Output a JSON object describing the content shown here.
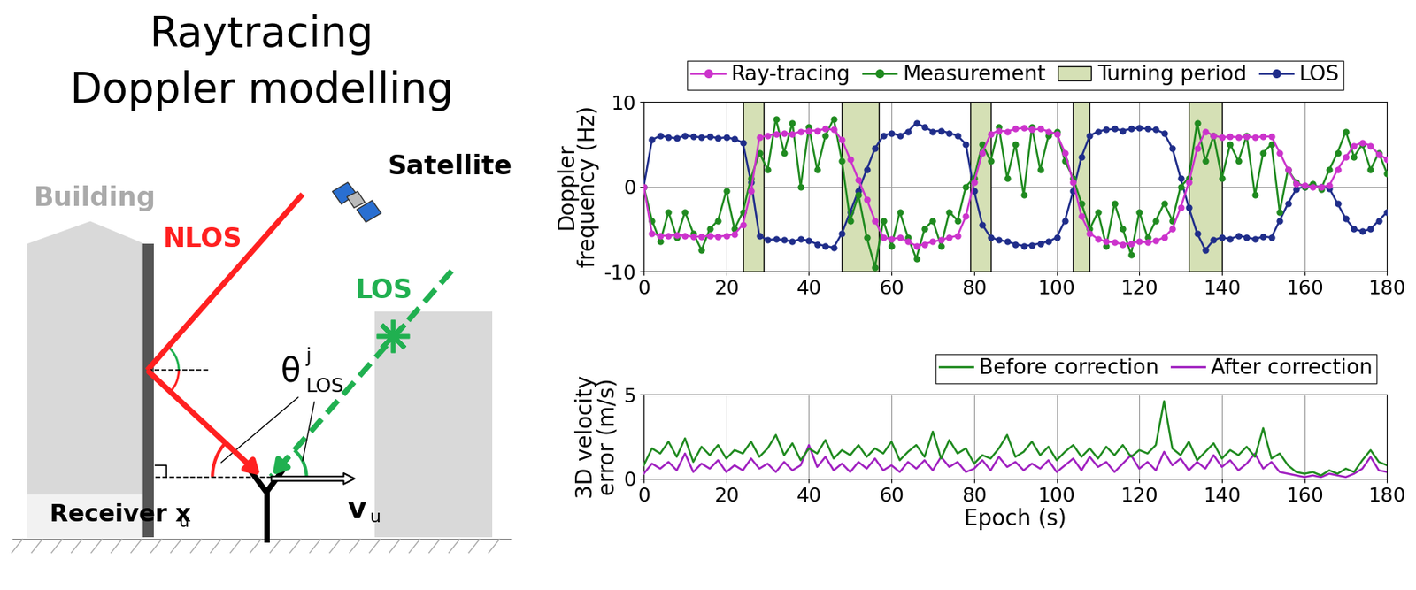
{
  "diagram": {
    "title": [
      "Raytracing",
      "Doppler modelling"
    ],
    "building": "Building",
    "satellite": "Satellite",
    "nlos": "NLOS",
    "los": "LOS",
    "angle": {
      "symbol": "θ",
      "sup": "j",
      "sub": "LOS"
    },
    "receiver": {
      "text": "Receiver x",
      "sub": "u"
    },
    "velocity": {
      "text": "v",
      "sub": "u"
    }
  },
  "chart_data": [
    {
      "type": "line",
      "y_label": "Doppler\nfrequency (Hz)",
      "x": [
        0,
        2,
        4,
        6,
        8,
        10,
        12,
        14,
        16,
        18,
        20,
        22,
        24,
        26,
        28,
        30,
        32,
        34,
        36,
        38,
        40,
        42,
        44,
        46,
        48,
        50,
        52,
        54,
        56,
        58,
        60,
        62,
        64,
        66,
        68,
        70,
        72,
        74,
        76,
        78,
        80,
        82,
        84,
        86,
        88,
        90,
        92,
        94,
        96,
        98,
        100,
        102,
        104,
        106,
        108,
        110,
        112,
        114,
        116,
        118,
        120,
        122,
        124,
        126,
        128,
        130,
        132,
        134,
        136,
        138,
        140,
        142,
        144,
        146,
        148,
        150,
        152,
        154,
        156,
        158,
        160,
        162,
        164,
        166,
        168,
        170,
        172,
        174,
        176,
        178,
        180
      ],
      "xlim": [
        0,
        180
      ],
      "xticks": [
        0,
        20,
        40,
        60,
        80,
        100,
        120,
        140,
        160,
        180
      ],
      "ylim": [
        -10,
        10
      ],
      "yticks": [
        -10,
        0,
        10
      ],
      "grid": true,
      "legend": "lower center",
      "series": [
        {
          "name": "Ray-tracing",
          "color": "#cc33cc",
          "marker": "o",
          "line_style": "solid",
          "values": [
            0,
            -5.5,
            -5.8,
            -5.8,
            -5.7,
            -5.8,
            -5.9,
            -5.9,
            -5.8,
            -5.9,
            -5.8,
            -5.6,
            -4.5,
            -0.5,
            5.8,
            6.0,
            6.2,
            6.3,
            6.2,
            6.5,
            6.6,
            6.6,
            6.8,
            6.7,
            5.5,
            3.2,
            0.8,
            -1.5,
            -4,
            -6,
            -6.2,
            -6.0,
            -6.5,
            -7,
            -6.8,
            -6.5,
            -6.3,
            -6.0,
            -5.8,
            -3.5,
            0.5,
            4,
            6.2,
            6.6,
            6.5,
            6.8,
            6.9,
            6.7,
            6.8,
            6.5,
            6.2,
            4.0,
            0.5,
            -3.5,
            -5.5,
            -6.2,
            -6.5,
            -6.6,
            -6.8,
            -6.7,
            -6.5,
            -6.6,
            -6.4,
            -6.0,
            -5.0,
            -2.5,
            0.5,
            4.5,
            6.5,
            6.0,
            5.8,
            5.9,
            5.8,
            5.9,
            5.8,
            5.9,
            5.9,
            4.0,
            2.0,
            0.3,
            0.1,
            0.0,
            0.0,
            0.1,
            2.0,
            3.5,
            4.8,
            5.2,
            4.8,
            3.8,
            3.2
          ]
        },
        {
          "name": "Measurement",
          "color": "#1f8a1f",
          "marker": "o",
          "line_style": "solid",
          "values": [
            0,
            -4,
            -6.5,
            -3,
            -6,
            -3,
            -5.5,
            -7.5,
            -5,
            -4,
            -0.5,
            -5,
            -3,
            1,
            4,
            2,
            8,
            4,
            7.5,
            0,
            7,
            2,
            6,
            8,
            3,
            -4,
            -1,
            -6,
            -9.5,
            -4,
            -7,
            -3,
            -6,
            -8.5,
            -5,
            -4,
            -7,
            -3,
            -4,
            0,
            1,
            5,
            3,
            7,
            1,
            5,
            -1,
            7,
            2,
            6,
            6.5,
            3,
            1,
            -2,
            -5,
            -3,
            -7,
            -2,
            -5,
            -8,
            -3,
            -6,
            -4,
            -2,
            -4,
            0,
            1,
            7.5,
            3,
            6,
            1,
            5,
            3,
            6,
            -1,
            4,
            5,
            -3,
            2,
            0.5,
            0,
            0.3,
            -0.3,
            2,
            4,
            6.5,
            3.5,
            5,
            2,
            4,
            1.5
          ]
        },
        {
          "name": "Turning period",
          "type": "span",
          "color": "#d5e0b5",
          "spans": [
            [
              24,
              29
            ],
            [
              48,
              57
            ],
            [
              79,
              84
            ],
            [
              104,
              108
            ],
            [
              132,
              140
            ]
          ]
        },
        {
          "name": "LOS",
          "color": "#1f2d8a",
          "marker": "o",
          "line_style": "solid",
          "values": [
            0,
            5.5,
            6.0,
            5.8,
            5.7,
            6.0,
            5.9,
            5.8,
            5.9,
            5.7,
            5.8,
            5.6,
            5.2,
            0.5,
            -5.8,
            -6.3,
            -6.2,
            -6.3,
            -6.5,
            -6.2,
            -6.4,
            -6.8,
            -7.0,
            -7.2,
            -5.5,
            -3.0,
            -0.5,
            2,
            4.5,
            6.0,
            6.3,
            6.0,
            6.5,
            7.5,
            7.0,
            6.5,
            6.6,
            6.3,
            6.0,
            5.0,
            -0.5,
            -4.5,
            -6.0,
            -6.3,
            -6.5,
            -6.8,
            -7.0,
            -6.9,
            -6.7,
            -6.5,
            -6.0,
            -4.0,
            -0.5,
            3.5,
            6.0,
            6.5,
            6.7,
            6.8,
            6.6,
            6.8,
            6.9,
            6.8,
            6.7,
            6.3,
            4.5,
            1.0,
            -2.5,
            -5.5,
            -7.5,
            -6.3,
            -6.0,
            -6.2,
            -5.8,
            -6.0,
            -6.2,
            -5.9,
            -6.0,
            -4.0,
            -2.0,
            -0.3,
            0.0,
            0.1,
            0.0,
            -0.2,
            -2.0,
            -3.8,
            -5.0,
            -5.3,
            -5.0,
            -4.0,
            -3.0
          ]
        }
      ]
    },
    {
      "type": "line",
      "x_label": "Epoch (s)",
      "y_label": "3D velocity\nerror (m/s)",
      "x": [
        0,
        2,
        4,
        6,
        8,
        10,
        12,
        14,
        16,
        18,
        20,
        22,
        24,
        26,
        28,
        30,
        32,
        34,
        36,
        38,
        40,
        42,
        44,
        46,
        48,
        50,
        52,
        54,
        56,
        58,
        60,
        62,
        64,
        66,
        68,
        70,
        72,
        74,
        76,
        78,
        80,
        82,
        84,
        86,
        88,
        90,
        92,
        94,
        96,
        98,
        100,
        102,
        104,
        106,
        108,
        110,
        112,
        114,
        116,
        118,
        120,
        122,
        124,
        126,
        128,
        130,
        132,
        134,
        136,
        138,
        140,
        142,
        144,
        146,
        148,
        150,
        152,
        154,
        156,
        158,
        160,
        162,
        164,
        166,
        168,
        170,
        172,
        174,
        176,
        178,
        180
      ],
      "xlim": [
        0,
        180
      ],
      "xticks": [
        0,
        20,
        40,
        60,
        80,
        100,
        120,
        140,
        160,
        180
      ],
      "ylim": [
        0,
        5
      ],
      "yticks": [
        0,
        5
      ],
      "grid": true,
      "legend": "lower right",
      "series": [
        {
          "name": "Before correction",
          "color": "#1f8a1f",
          "line_style": "solid",
          "values": [
            0.8,
            1.8,
            1.5,
            2.2,
            1.3,
            2.4,
            1.0,
            1.9,
            1.4,
            2.0,
            1.2,
            1.7,
            1.5,
            2.2,
            1.3,
            1.8,
            2.6,
            1.4,
            2.1,
            1.1,
            1.8,
            1.5,
            2.3,
            1.2,
            1.7,
            1.4,
            2.0,
            1.3,
            1.8,
            1.5,
            2.2,
            1.1,
            1.6,
            2.0,
            1.3,
            2.8,
            1.2,
            2.3,
            1.5,
            1.8,
            0.9,
            1.4,
            1.2,
            1.8,
            2.6,
            1.3,
            1.6,
            2.2,
            1.4,
            1.9,
            1.1,
            1.6,
            2.0,
            1.3,
            1.8,
            1.2,
            1.9,
            1.4,
            2.0,
            1.3,
            1.7,
            1.5,
            2.0,
            4.6,
            1.8,
            1.4,
            2.2,
            1.1,
            1.6,
            2.1,
            1.2,
            1.7,
            1.4,
            1.9,
            1.3,
            3.0,
            1.2,
            1.5,
            0.8,
            0.4,
            0.3,
            0.4,
            0.2,
            0.5,
            0.3,
            0.6,
            0.4,
            1.1,
            1.7,
            1.0,
            0.8
          ]
        },
        {
          "name": "After correction",
          "color": "#a020c0",
          "line_style": "solid",
          "values": [
            0.3,
            0.9,
            0.6,
            1.0,
            0.5,
            1.5,
            0.4,
            0.9,
            0.6,
            1.1,
            0.4,
            0.8,
            0.5,
            1.2,
            0.6,
            0.9,
            0.4,
            1.0,
            0.5,
            0.8,
            2.0,
            0.7,
            1.3,
            0.5,
            0.9,
            0.4,
            1.0,
            0.6,
            1.2,
            0.5,
            0.8,
            0.4,
            1.0,
            0.6,
            1.1,
            0.5,
            1.3,
            0.7,
            1.0,
            0.4,
            0.6,
            1.1,
            0.5,
            1.3,
            0.7,
            1.0,
            0.5,
            0.9,
            0.6,
            1.1,
            0.4,
            0.8,
            1.2,
            0.5,
            1.3,
            0.7,
            1.0,
            0.4,
            0.9,
            1.4,
            0.6,
            1.0,
            0.5,
            1.6,
            0.8,
            1.2,
            0.5,
            1.0,
            0.6,
            1.4,
            0.7,
            1.1,
            0.5,
            0.9,
            1.5,
            0.6,
            1.0,
            0.4,
            0.3,
            0.2,
            0.1,
            0.2,
            0.1,
            0.3,
            0.2,
            0.1,
            0.3,
            0.6,
            1.3,
            0.5,
            0.4
          ]
        }
      ]
    }
  ]
}
